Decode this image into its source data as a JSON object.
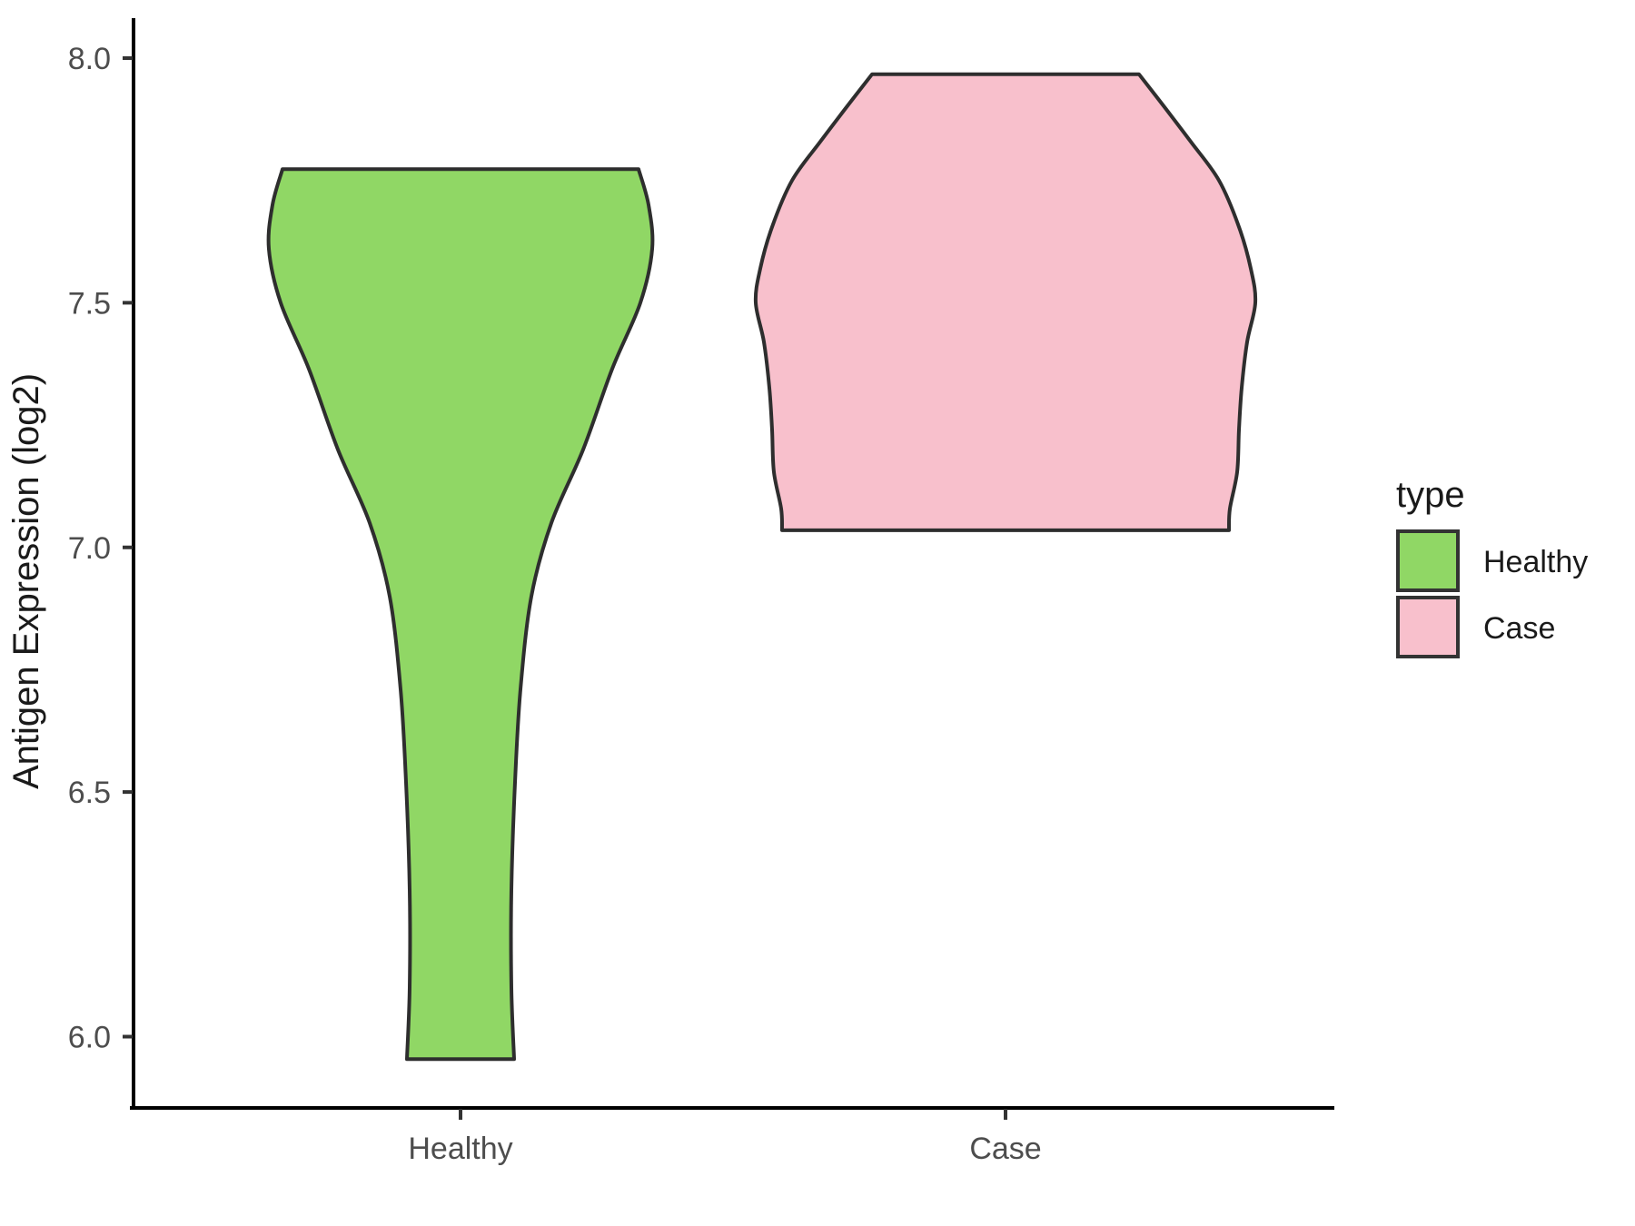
{
  "chart_data": {
    "type": "violin",
    "title": "",
    "xlabel": "",
    "ylabel": "Antigen Expression (log2)",
    "categories": [
      "Healthy",
      "Case"
    ],
    "y_axis": {
      "ticks": [
        {
          "label": "8.0",
          "value": 8.0
        },
        {
          "label": "7.5",
          "value": 7.5
        },
        {
          "label": "7.0",
          "value": 7.0
        },
        {
          "label": "6.5",
          "value": 6.5
        },
        {
          "label": "6.0",
          "value": 6.0
        }
      ],
      "range_shown": [
        5.85,
        8.1
      ],
      "grid": false
    },
    "legend": {
      "title": "type",
      "position": "right",
      "entries": [
        {
          "label": "Healthy",
          "color": "#90D765"
        },
        {
          "label": "Case",
          "color": "#F8C0CC"
        }
      ]
    },
    "series": [
      {
        "name": "Healthy",
        "color": "#90D765",
        "outline_color": "#2e2e2e",
        "value_range": [
          5.95,
          7.77
        ],
        "density_profile": [
          {
            "v": 7.773,
            "hw": 196
          },
          {
            "v": 7.7,
            "hw": 207
          },
          {
            "v": 7.61,
            "hw": 211
          },
          {
            "v": 7.5,
            "hw": 198
          },
          {
            "v": 7.365,
            "hw": 167
          },
          {
            "v": 7.2,
            "hw": 135
          },
          {
            "v": 7.05,
            "hw": 100
          },
          {
            "v": 6.9,
            "hw": 78
          },
          {
            "v": 6.71,
            "hw": 66
          },
          {
            "v": 6.52,
            "hw": 60
          },
          {
            "v": 6.3,
            "hw": 56
          },
          {
            "v": 6.1,
            "hw": 56
          },
          {
            "v": 5.954,
            "hw": 59
          }
        ]
      },
      {
        "name": "Case",
        "color": "#F8C0CC",
        "outline_color": "#2e2e2e",
        "value_range": [
          7.04,
          7.97
        ],
        "density_profile": [
          {
            "v": 7.967,
            "hw": 147
          },
          {
            "v": 7.9,
            "hw": 175
          },
          {
            "v": 7.829,
            "hw": 204
          },
          {
            "v": 7.75,
            "hw": 235
          },
          {
            "v": 7.655,
            "hw": 257
          },
          {
            "v": 7.57,
            "hw": 270
          },
          {
            "v": 7.5,
            "hw": 275
          },
          {
            "v": 7.42,
            "hw": 266
          },
          {
            "v": 7.326,
            "hw": 260
          },
          {
            "v": 7.24,
            "hw": 257
          },
          {
            "v": 7.154,
            "hw": 255
          },
          {
            "v": 7.079,
            "hw": 247
          },
          {
            "v": 7.035,
            "hw": 246
          }
        ]
      }
    ]
  }
}
